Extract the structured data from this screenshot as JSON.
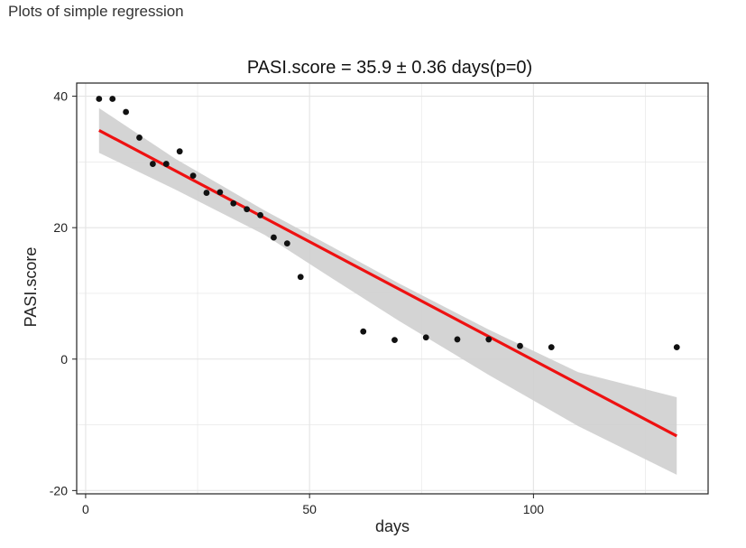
{
  "page": {
    "heading": "Plots of simple regression"
  },
  "chart_data": {
    "type": "scatter",
    "title": "PASI.score = 35.9 ± 0.36 days(p=0)",
    "xlabel": "days",
    "ylabel": "PASI.score",
    "xlim": [
      -2,
      139
    ],
    "ylim": [
      -20.5,
      42
    ],
    "xticks": [
      0,
      50,
      100
    ],
    "xminor": [
      25,
      75,
      125
    ],
    "yticks": [
      -20,
      0,
      20,
      40
    ],
    "yminor": [
      -10,
      10,
      30
    ],
    "grid": true,
    "points": {
      "x": [
        3,
        6,
        9,
        12,
        15,
        18,
        21,
        24,
        27,
        30,
        33,
        36,
        39,
        42,
        45,
        48,
        62,
        69,
        76,
        83,
        90,
        97,
        104,
        132
      ],
      "y": [
        39.6,
        39.6,
        37.6,
        33.7,
        29.7,
        29.7,
        31.6,
        27.9,
        25.3,
        25.4,
        23.7,
        22.8,
        21.9,
        18.5,
        17.6,
        12.5,
        4.2,
        2.9,
        3.3,
        3.0,
        3.0,
        2.0,
        1.8,
        1.8
      ]
    },
    "fit": {
      "x": [
        3,
        132
      ],
      "y": [
        34.8,
        -11.7
      ]
    },
    "band": {
      "x": [
        3,
        20,
        40,
        55,
        70,
        90,
        110,
        132
      ],
      "upper": [
        38.2,
        30.5,
        22.6,
        17.1,
        11.5,
        4.5,
        -2.0,
        -5.8
      ],
      "lower": [
        31.4,
        25.8,
        18.9,
        12.3,
        5.8,
        -2.4,
        -10.2,
        -17.6
      ]
    },
    "colors": {
      "fit_line": "#ee1111",
      "band": "#cfcfcf",
      "points": "#111111",
      "grid": "#e4e4e4"
    }
  }
}
